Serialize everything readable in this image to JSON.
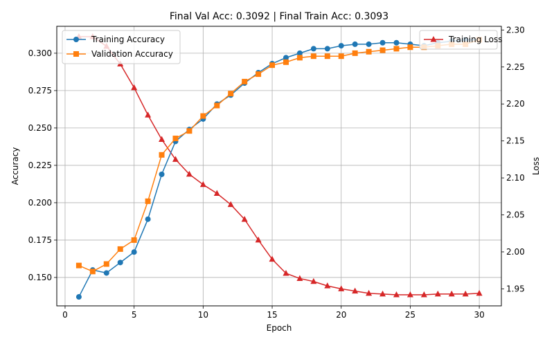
{
  "chart_data": {
    "type": "line",
    "title": "Final Val Acc: 0.3092 | Final Train Acc: 0.3093",
    "xlabel": "Epoch",
    "ylabel_left": "Accuracy",
    "ylabel_right": "Loss",
    "xlim": [
      -0.6,
      31.6
    ],
    "ylim_left": [
      0.131,
      0.318
    ],
    "ylim_right": [
      1.927,
      2.305
    ],
    "x_ticks": [
      0,
      5,
      10,
      15,
      20,
      25,
      30
    ],
    "y_left_ticks": [
      0.15,
      0.175,
      0.2,
      0.225,
      0.25,
      0.275,
      0.3
    ],
    "y_right_ticks": [
      1.95,
      2.0,
      2.05,
      2.1,
      2.15,
      2.2,
      2.25,
      2.3
    ],
    "grid": true,
    "x": [
      1,
      2,
      3,
      4,
      5,
      6,
      7,
      8,
      9,
      10,
      11,
      12,
      13,
      14,
      15,
      16,
      17,
      18,
      19,
      20,
      21,
      22,
      23,
      24,
      25,
      26,
      27,
      28,
      29,
      30
    ],
    "series": [
      {
        "name": "Training Accuracy",
        "axis": "left",
        "color": "#1f77b4",
        "marker": "circle",
        "values": [
          0.137,
          0.155,
          0.153,
          0.16,
          0.167,
          0.189,
          0.219,
          0.241,
          0.249,
          0.256,
          0.266,
          0.272,
          0.28,
          0.287,
          0.293,
          0.297,
          0.3,
          0.303,
          0.303,
          0.305,
          0.306,
          0.306,
          0.307,
          0.307,
          0.306,
          0.305,
          0.307,
          0.308,
          0.309,
          0.309
        ]
      },
      {
        "name": "Validation Accuracy",
        "axis": "left",
        "color": "#ff7f0e",
        "marker": "square",
        "values": [
          0.158,
          0.154,
          0.159,
          0.169,
          0.175,
          0.201,
          0.232,
          0.243,
          0.248,
          0.258,
          0.265,
          0.273,
          0.281,
          0.286,
          0.292,
          0.294,
          0.297,
          0.298,
          0.298,
          0.298,
          0.3,
          0.301,
          0.302,
          0.303,
          0.304,
          0.304,
          0.305,
          0.306,
          0.306,
          0.309
        ]
      },
      {
        "name": "Training Loss",
        "axis": "right",
        "color": "#d62728",
        "marker": "triangle",
        "values": [
          2.291,
          2.291,
          2.278,
          2.254,
          2.222,
          2.185,
          2.152,
          2.125,
          2.105,
          2.091,
          2.079,
          2.064,
          2.044,
          2.016,
          1.99,
          1.971,
          1.964,
          1.96,
          1.954,
          1.95,
          1.947,
          1.944,
          1.943,
          1.942,
          1.942,
          1.942,
          1.943,
          1.943,
          1.943,
          1.944
        ]
      }
    ],
    "legend_left_placement": "upper-left",
    "legend_right_placement": "upper-right"
  }
}
